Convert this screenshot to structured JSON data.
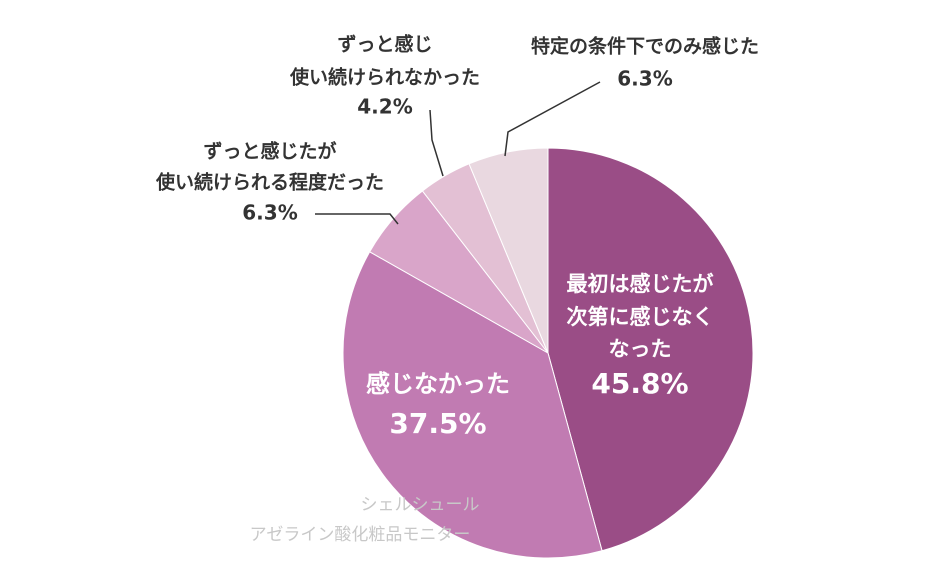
{
  "chart_data": {
    "type": "pie",
    "categories": [
      [
        "最初は感じたが",
        "次第に感じなく",
        "なった"
      ],
      [
        "感じなかった"
      ],
      [
        "ずっと感じたが",
        "使い続けられる程度だった"
      ],
      [
        "ずっと感じ",
        "使い続けられなかった"
      ],
      [
        "特定の条件下でのみ感じた"
      ]
    ],
    "values": [
      45.8,
      37.5,
      6.3,
      4.2,
      6.3
    ],
    "value_labels": [
      "45.8%",
      "37.5%",
      "6.3%",
      "4.2%",
      "6.3%"
    ],
    "colors": [
      "#9a4d86",
      "#c17bb2",
      "#d9a5c9",
      "#e3c0d4",
      "#e9d8e0"
    ],
    "watermark": [
      "シェルシュール",
      "アゼライン酸化粧品モニター"
    ]
  }
}
